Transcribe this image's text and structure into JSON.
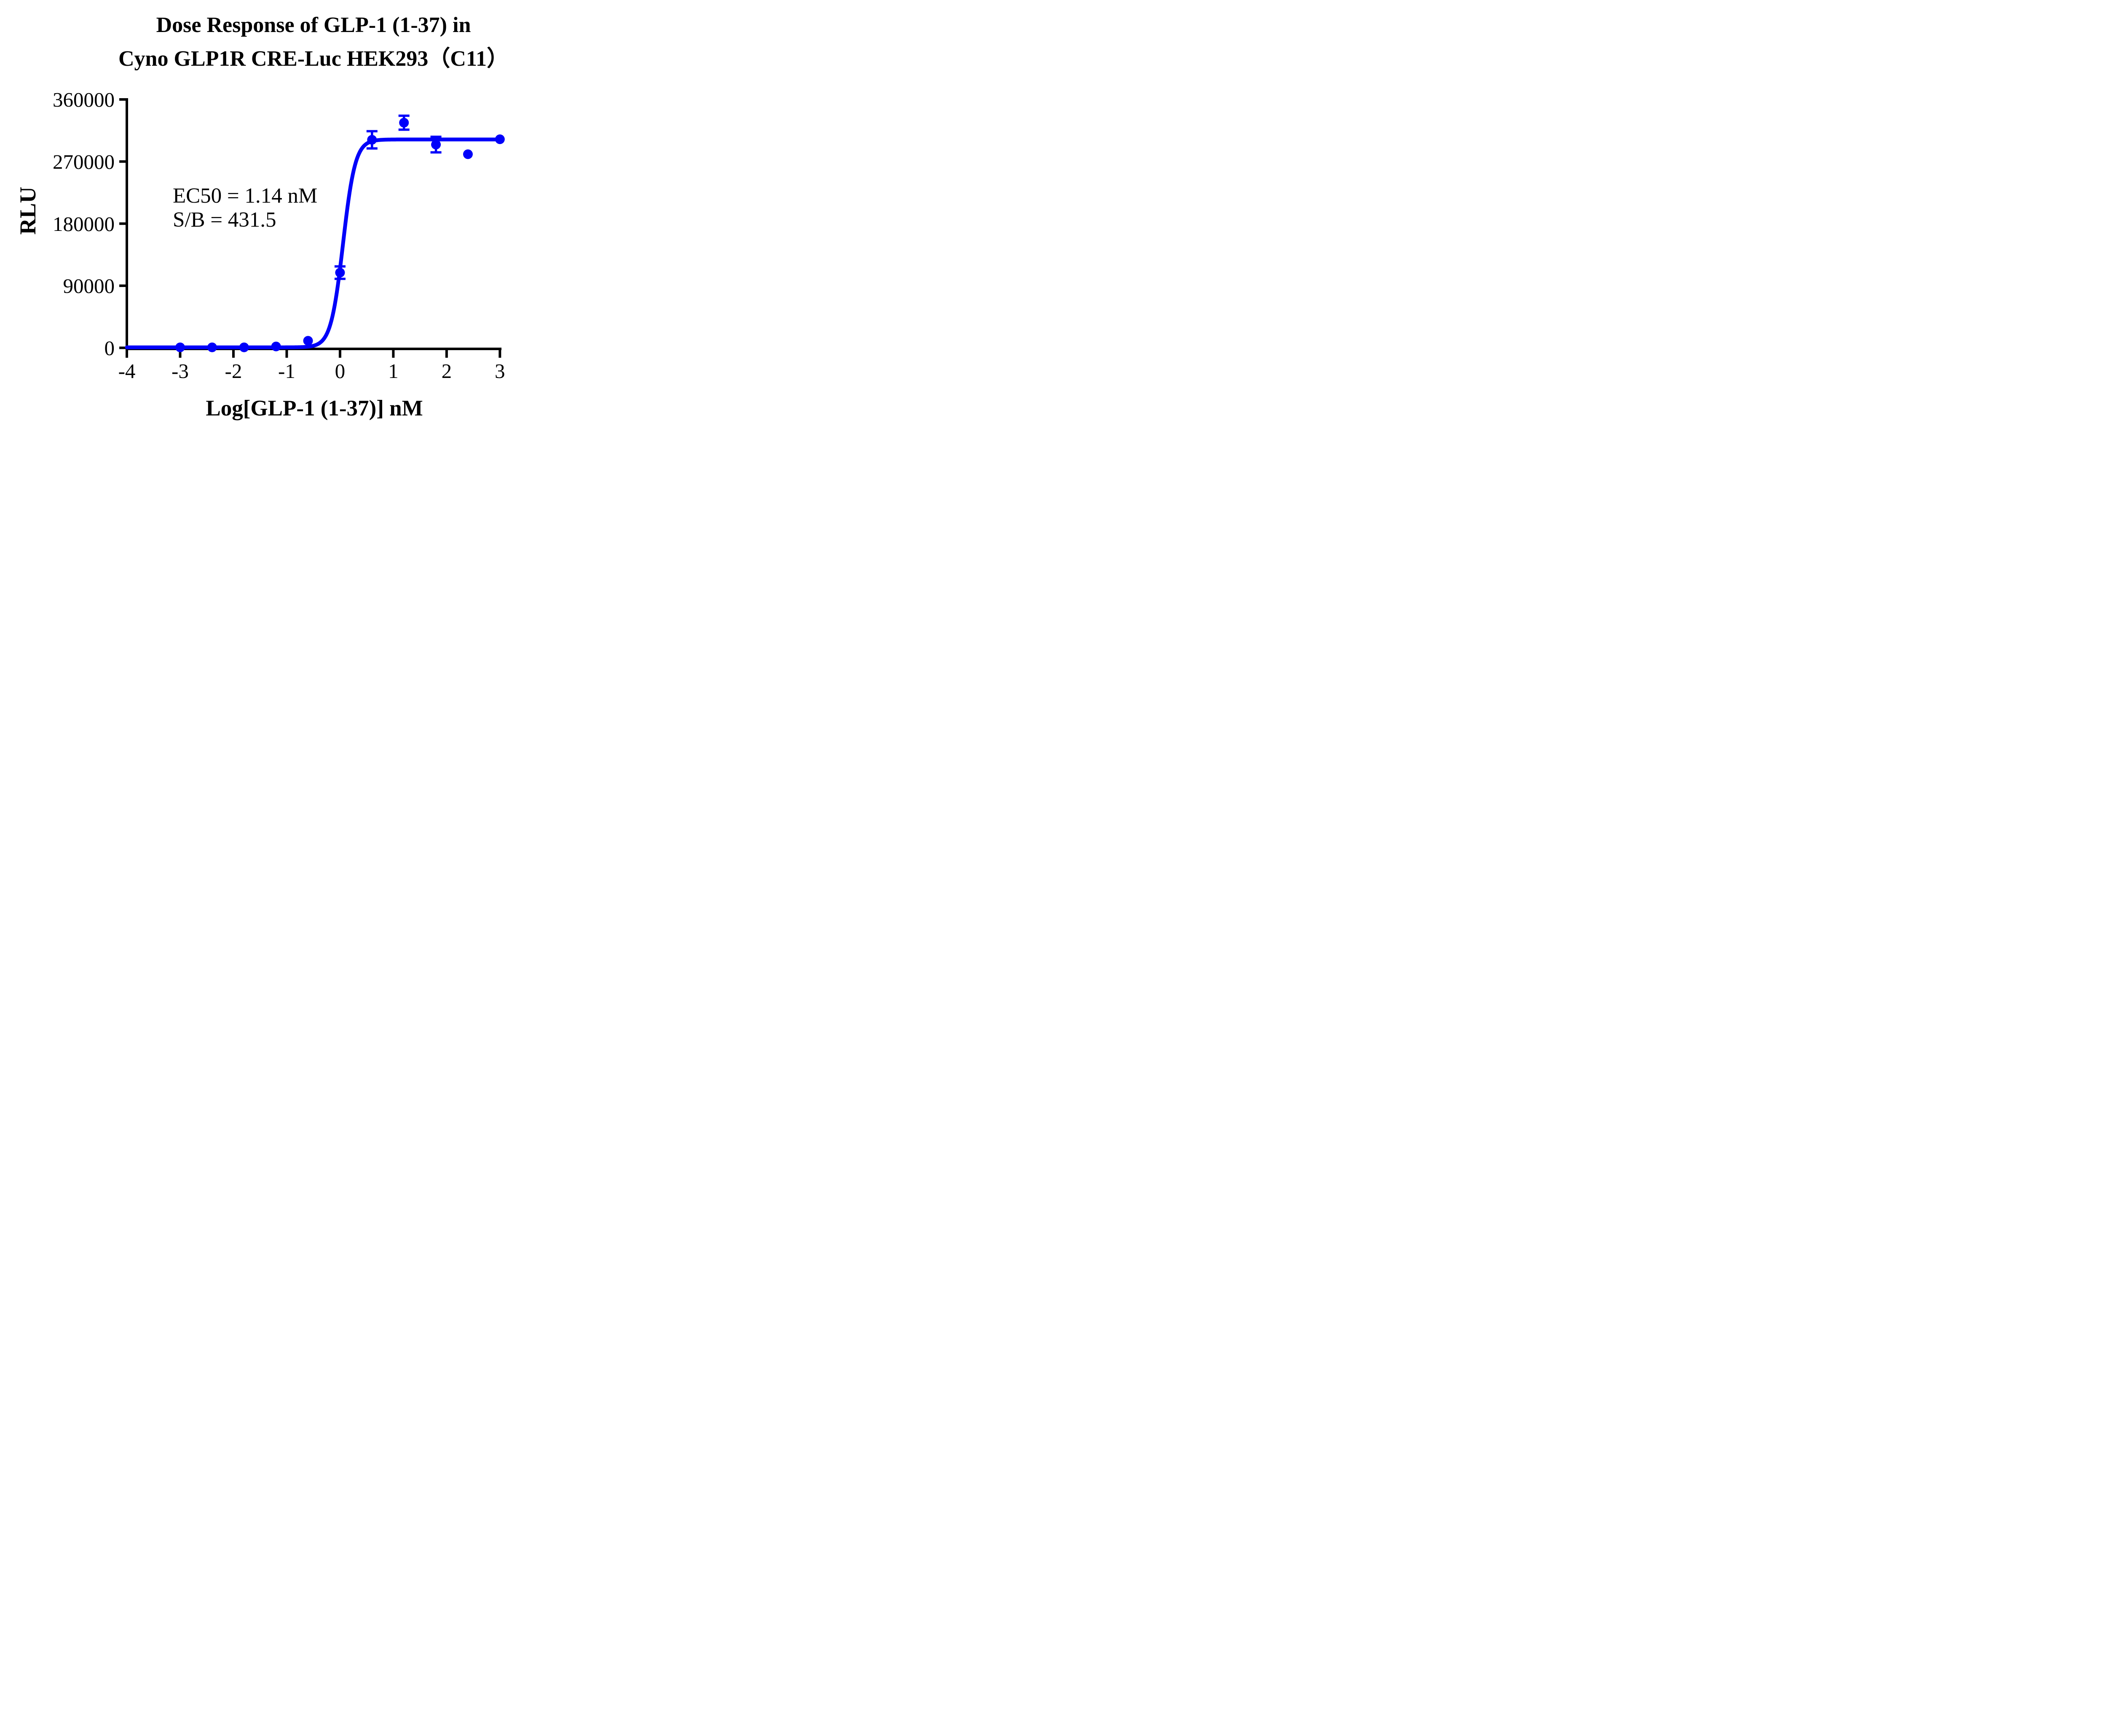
{
  "chart_data": {
    "type": "scatter",
    "title_line1": "Dose Response of GLP-1 (1-37) in",
    "title_line2": "Cyno GLP1R CRE-Luc HEK293（C11）",
    "xlabel": "Log[GLP-1 (1-37)] nM",
    "ylabel": "RLU",
    "annotation": {
      "ec50": "EC50 = 1.14 nM",
      "sb": "S/B = 431.5"
    },
    "series_color": "#0000FA",
    "axis_color": "#000000",
    "xlim": [
      -4,
      3
    ],
    "ylim": [
      0,
      360000
    ],
    "x_ticks": [
      -4,
      -3,
      -2,
      -1,
      0,
      1,
      2,
      3
    ],
    "y_ticks": [
      0,
      90000,
      180000,
      270000,
      360000
    ],
    "points": [
      {
        "x": -3.0,
        "y": 700
      },
      {
        "x": -2.4,
        "y": 700
      },
      {
        "x": -1.8,
        "y": 700
      },
      {
        "x": -1.2,
        "y": 2000
      },
      {
        "x": -0.6,
        "y": 10200
      },
      {
        "x": 0.0,
        "y": 109000,
        "err": 9000
      },
      {
        "x": 0.6,
        "y": 301500,
        "err": 12500
      },
      {
        "x": 1.2,
        "y": 326300,
        "err": 10100
      },
      {
        "x": 1.8,
        "y": 294600,
        "err": 11300
      },
      {
        "x": 2.4,
        "y": 280600
      },
      {
        "x": 3.0,
        "y": 302300
      }
    ],
    "fit": {
      "bottom": 700,
      "top": 302000,
      "logEC50": 0.057,
      "hill": 3.8
    },
    "legend": "none",
    "grid": "off"
  }
}
